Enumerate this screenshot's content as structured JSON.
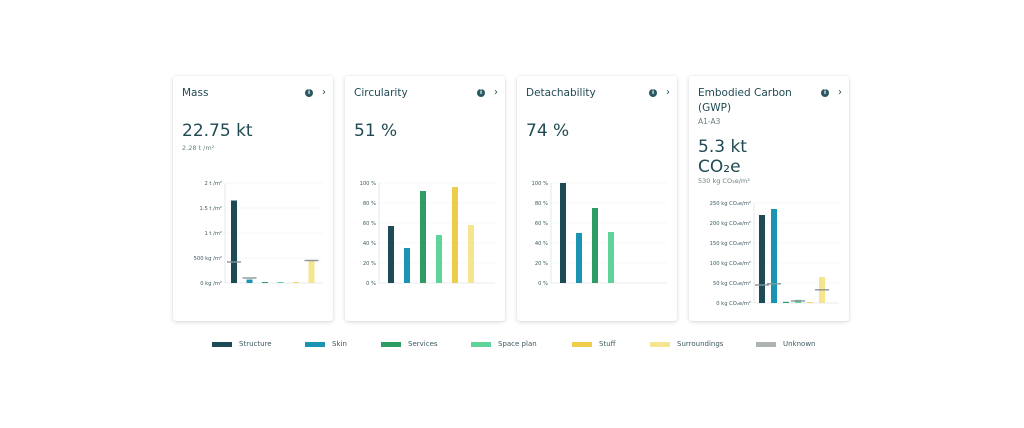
{
  "colors": {
    "Structure": "#1c4b55",
    "Skin": "#1a94b3",
    "Services": "#2e9d63",
    "Space plan": "#5fd49a",
    "Stuff": "#f0cc4b",
    "Surroundings": "#f6e58f",
    "Unknown": "#aeb3b4"
  },
  "legend": [
    "Structure",
    "Skin",
    "Services",
    "Space plan",
    "Stuff",
    "Surroundings",
    "Unknown"
  ],
  "cards": [
    {
      "title": "Mass",
      "value": "22.75 kt",
      "sub": "2.28 t /m²"
    },
    {
      "title": "Circularity",
      "value": "51 %"
    },
    {
      "title": "Detachability",
      "value": "74 %"
    },
    {
      "title": "Embodied Carbon (GWP)",
      "subtitle": "A1-A3",
      "value": "5.3 kt CO₂e",
      "sub": "530 kg CO₂e/m²"
    }
  ],
  "chart_data": [
    {
      "type": "bar",
      "categories": [
        "Structure",
        "Skin",
        "Services",
        "Space plan",
        "Stuff",
        "Surroundings"
      ],
      "values": [
        1.65,
        0.07,
        0.02,
        0.02,
        0.01,
        0.45
      ],
      "markers": [
        0.42,
        0.1,
        null,
        null,
        null,
        0.45
      ],
      "ylim": [
        0,
        2
      ],
      "yticks": [
        0,
        0.5,
        1,
        1.5,
        2
      ],
      "yticklabels": [
        "0 kg /m²",
        "500 kg /m²",
        "1 t /m²",
        "1.5 t /m²",
        "2 t /m²"
      ]
    },
    {
      "type": "bar",
      "categories": [
        "Structure",
        "Skin",
        "Services",
        "Space plan",
        "Stuff",
        "Surroundings"
      ],
      "values": [
        57,
        35,
        92,
        48,
        96,
        58
      ],
      "ylim": [
        0,
        100
      ],
      "yticks": [
        0,
        20,
        40,
        60,
        80,
        100
      ],
      "yticklabels": [
        "0 %",
        "20 %",
        "40 %",
        "60 %",
        "80 %",
        "100 %"
      ]
    },
    {
      "type": "bar",
      "categories": [
        "Structure",
        "Skin",
        "Services",
        "Space plan",
        "Stuff",
        "Surroundings"
      ],
      "values": [
        100,
        50,
        75,
        51,
        0,
        0
      ],
      "ylim": [
        0,
        100
      ],
      "yticks": [
        0,
        20,
        40,
        60,
        80,
        100
      ],
      "yticklabels": [
        "0 %",
        "20 %",
        "40 %",
        "60 %",
        "80 %",
        "100 %"
      ]
    },
    {
      "type": "bar",
      "categories": [
        "Structure",
        "Skin",
        "Services",
        "Space plan",
        "Stuff",
        "Surroundings"
      ],
      "values": [
        220,
        235,
        3,
        8,
        2,
        65
      ],
      "markers": [
        45,
        48,
        null,
        5,
        null,
        33
      ],
      "ylim": [
        0,
        250
      ],
      "yticks": [
        0,
        50,
        100,
        150,
        200,
        250
      ],
      "yticklabels": [
        "0 kg CO₂e/m²",
        "50 kg CO₂e/m²",
        "100 kg CO₂e/m²",
        "150 kg CO₂e/m²",
        "200 kg CO₂e/m²",
        "250 kg CO₂e/m²"
      ]
    }
  ]
}
